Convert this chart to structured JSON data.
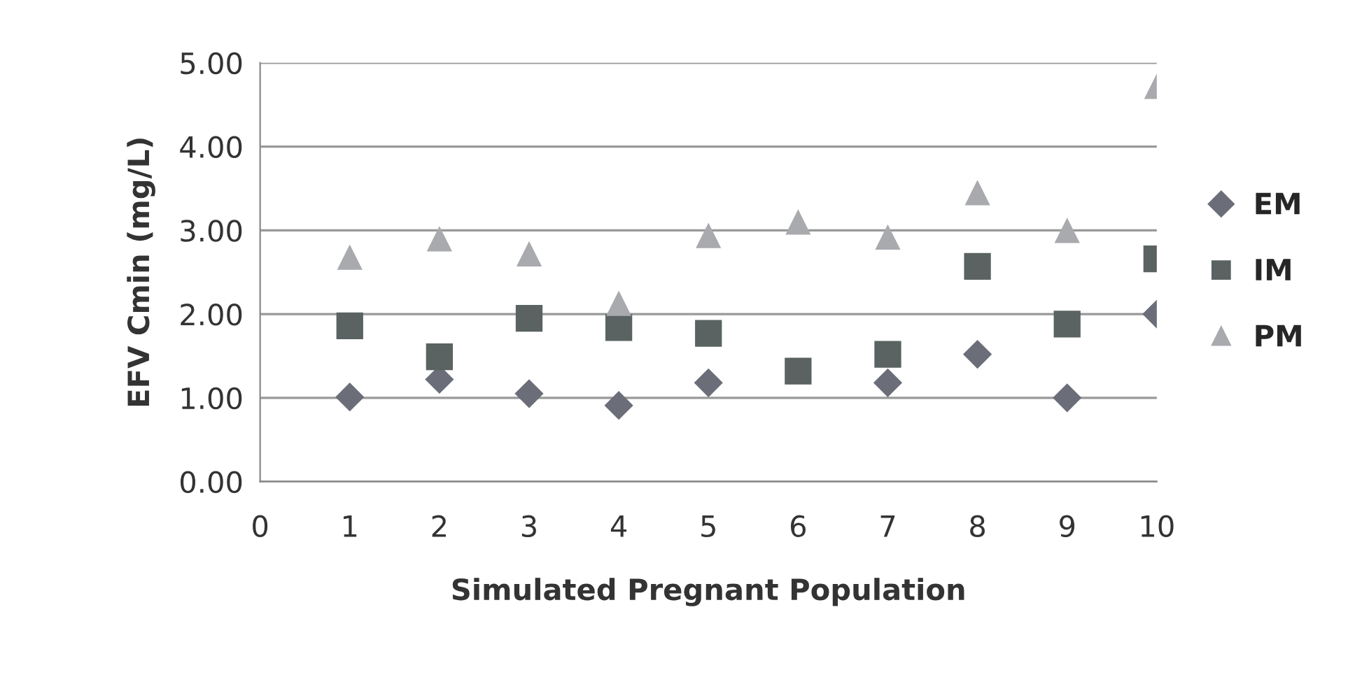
{
  "chart_data": {
    "type": "scatter",
    "xlabel": "Simulated Pregnant Population",
    "ylabel": "EFV Cmin (mg/L)",
    "x": [
      1,
      2,
      3,
      4,
      5,
      6,
      7,
      8,
      9,
      10
    ],
    "series": [
      {
        "name": "EM",
        "color": "#6b6e78",
        "marker": "diamond",
        "values": [
          1.01,
          1.22,
          1.05,
          0.91,
          1.18,
          null,
          1.18,
          1.52,
          1.0,
          2.0
        ]
      },
      {
        "name": "IM",
        "color": "#5a6262",
        "marker": "square",
        "values": [
          1.86,
          1.49,
          1.95,
          1.84,
          1.77,
          1.32,
          1.52,
          2.57,
          1.88,
          2.66
        ]
      },
      {
        "name": "PM",
        "color": "#a8aaae",
        "marker": "triangle",
        "values": [
          2.68,
          2.9,
          2.72,
          2.13,
          2.94,
          3.1,
          2.92,
          3.45,
          3.0,
          4.72
        ]
      }
    ],
    "xlim": [
      0,
      10
    ],
    "xticks": [
      0,
      1,
      2,
      3,
      4,
      5,
      6,
      7,
      8,
      9,
      10
    ],
    "ylim": [
      0,
      5
    ],
    "yticks": [
      {
        "value": 0,
        "label": "0.00"
      },
      {
        "value": 1,
        "label": "1.00"
      },
      {
        "value": 2,
        "label": "2.00"
      },
      {
        "value": 3,
        "label": "3.00"
      },
      {
        "value": 4,
        "label": "4.00"
      },
      {
        "value": 5,
        "label": "5.00"
      }
    ],
    "grid": "y",
    "legend": "right"
  }
}
